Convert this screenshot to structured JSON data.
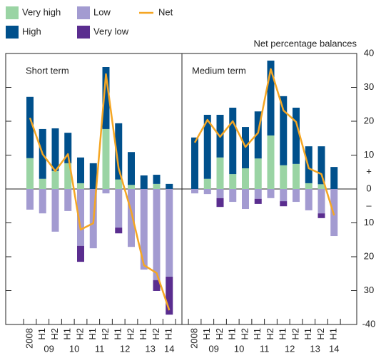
{
  "chart_data": {
    "type": "bar",
    "y_label": "Net percentage balances",
    "ylim": [
      -40,
      40
    ],
    "yticks": [
      -40,
      {
        "value": -30,
        "label": "30"
      },
      {
        "value": -20,
        "label": "20"
      },
      {
        "value": -10,
        "label": "10"
      },
      0,
      10,
      20,
      30,
      40
    ],
    "sign_labels": {
      "plus": "+",
      "minus": "–"
    },
    "panels": [
      {
        "title": "Short term",
        "categories": [
          "2008",
          "H1",
          "H2",
          "H1",
          "H2",
          "H1",
          "H2",
          "H1",
          "H2",
          "H1",
          "H2",
          "H1"
        ],
        "year_labels": [
          "09",
          "10",
          "11",
          "12",
          "13",
          "14"
        ],
        "series": [
          {
            "name": "Very high",
            "color": "#9ad4a4",
            "values": [
              9.1,
              3.0,
              5.3,
              7.6,
              1.7,
              0,
              17.7,
              2.8,
              1.2,
              0,
              1.5,
              0
            ]
          },
          {
            "name": "High",
            "color": "#00508c",
            "values": [
              18.1,
              14.7,
              12.6,
              9.0,
              7.6,
              7.6,
              18.3,
              16.6,
              9.7,
              4.0,
              2.7,
              1.5
            ]
          },
          {
            "name": "Low",
            "color": "#a39bd1",
            "values": [
              -6.1,
              -7.2,
              -12.6,
              -6.5,
              -16.8,
              -17.5,
              -1.3,
              -11.4,
              -17.1,
              -23.8,
              -26.9,
              -25.9
            ]
          },
          {
            "name": "Very low",
            "color": "#5a2d8f",
            "values": [
              0,
              0,
              0,
              0,
              -4.7,
              0,
              0,
              -1.7,
              0,
              0,
              -3.2,
              -11.2
            ]
          },
          {
            "name": "Net",
            "color": "#f5a623",
            "type": "line",
            "values": [
              21.0,
              10.3,
              5.3,
              10.3,
              -12.0,
              -10.1,
              33.9,
              6.1,
              -6.7,
              -22.5,
              -24.8,
              -35.8
            ]
          }
        ]
      },
      {
        "title": "Medium term",
        "categories": [
          "2008",
          "H1",
          "H2",
          "H1",
          "H2",
          "H1",
          "H2",
          "H1",
          "H2",
          "H1",
          "H2",
          "H1"
        ],
        "year_labels": [
          "09",
          "10",
          "11",
          "12",
          "13",
          "14"
        ],
        "series": [
          {
            "name": "Very high",
            "color": "#9ad4a4",
            "values": [
              0,
              3.0,
              9.3,
              4.4,
              6.1,
              9.0,
              15.8,
              7.0,
              7.4,
              1.7,
              1.4,
              0
            ]
          },
          {
            "name": "High",
            "color": "#00508c",
            "values": [
              15.2,
              18.9,
              12.6,
              19.6,
              12.2,
              13.9,
              22.1,
              20.4,
              16.6,
              10.9,
              11.2,
              6.5
            ]
          },
          {
            "name": "Low",
            "color": "#a39bd1",
            "values": [
              -1.3,
              -1.5,
              -2.7,
              -3.8,
              -5.9,
              -2.9,
              -2.7,
              -3.6,
              -3.8,
              -6.3,
              -7.2,
              -13.9
            ]
          },
          {
            "name": "Very low",
            "color": "#5a2d8f",
            "values": [
              0,
              0,
              -2.6,
              0,
              0,
              -1.5,
              0,
              -1.5,
              0,
              0,
              -1.4,
              0
            ]
          },
          {
            "name": "Net",
            "color": "#f5a623",
            "type": "line",
            "values": [
              13.7,
              20.4,
              15.4,
              20.0,
              12.4,
              16.6,
              35.4,
              23.2,
              19.8,
              6.1,
              4.4,
              -7.8
            ]
          }
        ]
      }
    ]
  }
}
